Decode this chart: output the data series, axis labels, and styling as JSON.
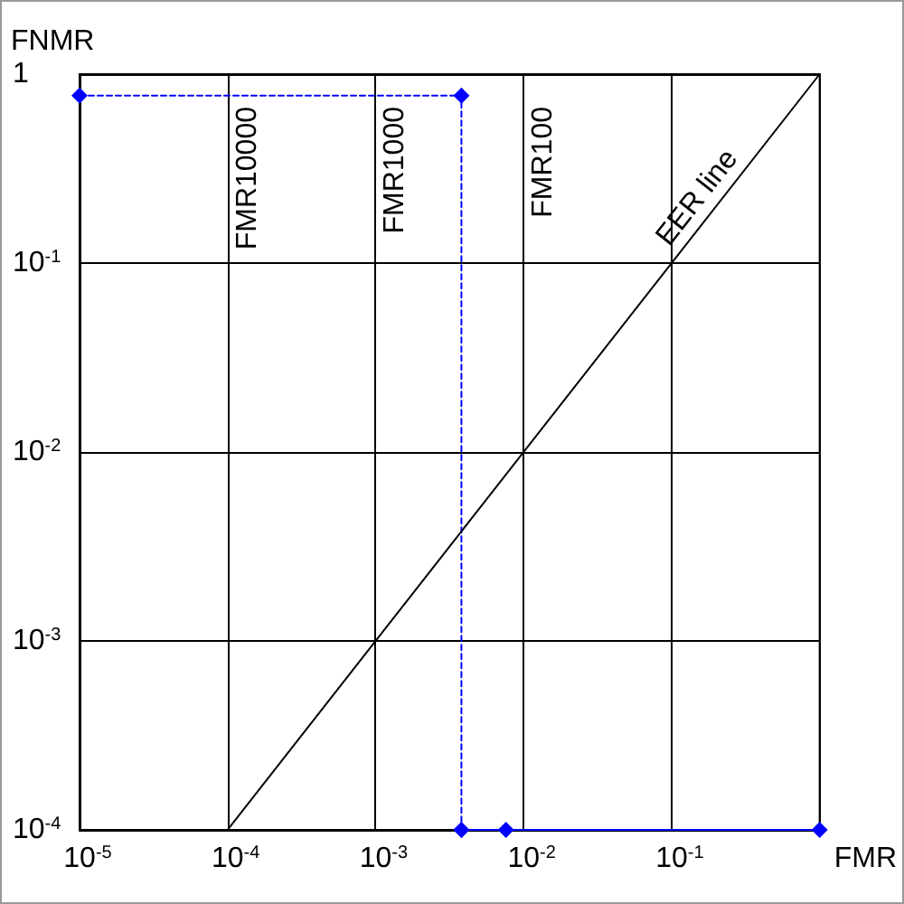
{
  "chart_data": {
    "type": "line",
    "xlabel": "FMR",
    "ylabel": "FNMR",
    "log": "xy",
    "xlim": [
      1e-05,
      1
    ],
    "ylim": [
      0.0001,
      1
    ],
    "xticks": [
      {
        "value": 1e-05,
        "label": "10$^{-5}$"
      },
      {
        "value": 0.0001,
        "label": "10$^{-4}$"
      },
      {
        "value": 0.001,
        "label": "10$^{-3}$"
      },
      {
        "value": 0.01,
        "label": "10$^{-2}$"
      },
      {
        "value": 0.1,
        "label": "10$^{-1}$"
      },
      {
        "value": 1,
        "label": null
      }
    ],
    "yticks": [
      {
        "value": 0.0001,
        "label": "10$^{-4}$"
      },
      {
        "value": 0.001,
        "label": "10$^{-3}$"
      },
      {
        "value": 0.01,
        "label": "10$^{-2}$"
      },
      {
        "value": 0.1,
        "label": "10$^{-1}$"
      },
      1
    ],
    "grid": true,
    "series": [
      {
        "color": "#0000ff",
        "x": [
          1e-05,
          0.0038,
          0.0038
        ],
        "values": [
          0.77,
          0.77,
          0.0001
        ],
        "line_style": "dashed",
        "marker": "diamond"
      },
      {
        "color": "#0000ff",
        "x": [
          0.0038,
          0.0076,
          1
        ],
        "values": [
          0.0001,
          0.0001,
          0.0001
        ],
        "line_style": "solid",
        "marker": "diamond"
      },
      {
        "name": "EER line",
        "color": "#000000",
        "x": [
          1.7e-05,
          0.0001,
          1
        ],
        "values": [
          0.0001,
          0.0001,
          1
        ],
        "line_style": "solid",
        "marker": "none"
      }
    ],
    "ref_lines": [
      {
        "axis": "x",
        "value": 0.0001,
        "label": "FMR10000",
        "color": "#000000"
      },
      {
        "axis": "x",
        "value": 0.001,
        "label": "FMR1000",
        "color": "#000000"
      },
      {
        "axis": "x",
        "value": 0.01,
        "label": "FMR100",
        "color": "#000000"
      }
    ]
  }
}
